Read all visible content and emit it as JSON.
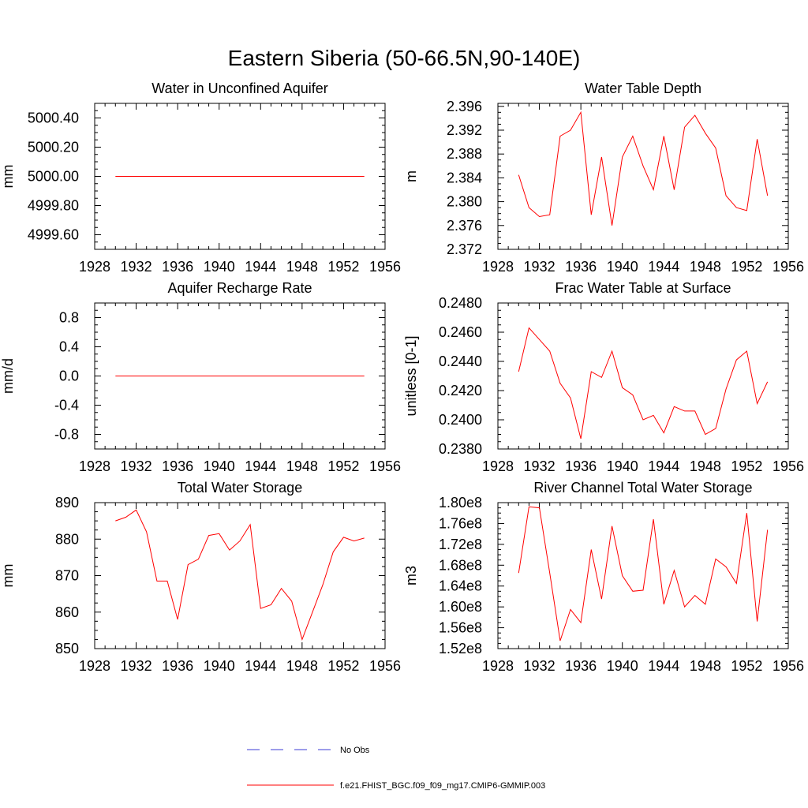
{
  "figure_title": "Eastern Siberia (50-66.5N,90-140E)",
  "colors": {
    "model": "#ff0000",
    "obs": "#3b3bd6",
    "axis": "#000000"
  },
  "legend": {
    "obs_label": "No Obs",
    "model_label": "f.e21.FHIST_BGC.f09_f09_mg17.CMIP6-GMMIP.003"
  },
  "chart_data": [
    {
      "type": "line",
      "title": "Water in Unconfined Aquifer",
      "ylabel": "mm",
      "xlim": [
        1928,
        1956
      ],
      "ylim": [
        4999.5,
        5000.5
      ],
      "xticks": [
        1928,
        1932,
        1936,
        1940,
        1944,
        1948,
        1952,
        1956
      ],
      "xtick_labels": [
        "1928",
        "1932",
        "1936",
        "1940",
        "1944",
        "1948",
        "1952",
        "1956"
      ],
      "yticks": [
        4999.6,
        4999.8,
        5000.0,
        5000.2,
        5000.4
      ],
      "ytick_labels": [
        "4999.60",
        "4999.80",
        "5000.00",
        "5000.20",
        "5000.40"
      ],
      "x": [
        1930,
        1931,
        1932,
        1933,
        1934,
        1935,
        1936,
        1937,
        1938,
        1939,
        1940,
        1941,
        1942,
        1943,
        1944,
        1945,
        1946,
        1947,
        1948,
        1949,
        1950,
        1951,
        1952,
        1953,
        1954
      ],
      "series": [
        {
          "name": "f.e21.FHIST_BGC.f09_f09_mg17.CMIP6-GMMIP.003",
          "values": [
            5000,
            5000,
            5000,
            5000,
            5000,
            5000,
            5000,
            5000,
            5000,
            5000,
            5000,
            5000,
            5000,
            5000,
            5000,
            5000,
            5000,
            5000,
            5000,
            5000,
            5000,
            5000,
            5000,
            5000,
            5000
          ]
        }
      ]
    },
    {
      "type": "line",
      "title": "Water Table Depth",
      "ylabel": "m",
      "xlim": [
        1928,
        1956
      ],
      "ylim": [
        2.372,
        2.3965
      ],
      "xticks": [
        1928,
        1932,
        1936,
        1940,
        1944,
        1948,
        1952,
        1956
      ],
      "xtick_labels": [
        "1928",
        "1932",
        "1936",
        "1940",
        "1944",
        "1948",
        "1952",
        "1956"
      ],
      "yticks": [
        2.372,
        2.376,
        2.38,
        2.384,
        2.388,
        2.392,
        2.396
      ],
      "ytick_labels": [
        "2.372",
        "2.376",
        "2.380",
        "2.384",
        "2.388",
        "2.392",
        "2.396"
      ],
      "x": [
        1930,
        1931,
        1932,
        1933,
        1934,
        1935,
        1936,
        1937,
        1938,
        1939,
        1940,
        1941,
        1942,
        1943,
        1944,
        1945,
        1946,
        1947,
        1948,
        1949,
        1950,
        1951,
        1952,
        1953,
        1954
      ],
      "series": [
        {
          "name": "f.e21.FHIST_BGC.f09_f09_mg17.CMIP6-GMMIP.003",
          "values": [
            2.3845,
            2.379,
            2.3775,
            2.3778,
            2.391,
            2.392,
            2.395,
            2.3778,
            2.3875,
            2.376,
            2.3875,
            2.391,
            2.386,
            2.382,
            2.391,
            2.382,
            2.3925,
            2.3945,
            2.3915,
            2.389,
            2.381,
            2.379,
            2.3785,
            2.3905,
            2.381
          ]
        }
      ]
    },
    {
      "type": "line",
      "title": "Aquifer Recharge Rate",
      "ylabel": "mm/d",
      "xlim": [
        1928,
        1956
      ],
      "ylim": [
        -1.0,
        1.0
      ],
      "xticks": [
        1928,
        1932,
        1936,
        1940,
        1944,
        1948,
        1952,
        1956
      ],
      "xtick_labels": [
        "1928",
        "1932",
        "1936",
        "1940",
        "1944",
        "1948",
        "1952",
        "1956"
      ],
      "yticks": [
        -0.8,
        -0.4,
        0.0,
        0.4,
        0.8
      ],
      "ytick_labels": [
        "-0.8",
        "-0.4",
        "0.0",
        "0.4",
        "0.8"
      ],
      "x": [
        1930,
        1931,
        1932,
        1933,
        1934,
        1935,
        1936,
        1937,
        1938,
        1939,
        1940,
        1941,
        1942,
        1943,
        1944,
        1945,
        1946,
        1947,
        1948,
        1949,
        1950,
        1951,
        1952,
        1953,
        1954
      ],
      "series": [
        {
          "name": "f.e21.FHIST_BGC.f09_f09_mg17.CMIP6-GMMIP.003",
          "values": [
            0,
            0,
            0,
            0,
            0,
            0,
            0,
            0,
            0,
            0,
            0,
            0,
            0,
            0,
            0,
            0,
            0,
            0,
            0,
            0,
            0,
            0,
            0,
            0,
            0
          ]
        }
      ]
    },
    {
      "type": "line",
      "title": "Frac Water Table at Surface",
      "ylabel": "unitless [0-1]",
      "xlim": [
        1928,
        1956
      ],
      "ylim": [
        0.238,
        0.248
      ],
      "xticks": [
        1928,
        1932,
        1936,
        1940,
        1944,
        1948,
        1952,
        1956
      ],
      "xtick_labels": [
        "1928",
        "1932",
        "1936",
        "1940",
        "1944",
        "1948",
        "1952",
        "1956"
      ],
      "yticks": [
        0.238,
        0.24,
        0.242,
        0.244,
        0.246,
        0.248
      ],
      "ytick_labels": [
        "0.2380",
        "0.2400",
        "0.2420",
        "0.2440",
        "0.2460",
        "0.2480"
      ],
      "x": [
        1930,
        1931,
        1932,
        1933,
        1934,
        1935,
        1936,
        1937,
        1938,
        1939,
        1940,
        1941,
        1942,
        1943,
        1944,
        1945,
        1946,
        1947,
        1948,
        1949,
        1950,
        1951,
        1952,
        1953,
        1954
      ],
      "series": [
        {
          "name": "f.e21.FHIST_BGC.f09_f09_mg17.CMIP6-GMMIP.003",
          "values": [
            0.2433,
            0.2463,
            0.2455,
            0.2447,
            0.2425,
            0.2415,
            0.2387,
            0.2433,
            0.2429,
            0.2447,
            0.2422,
            0.2417,
            0.24,
            0.2403,
            0.2391,
            0.2409,
            0.2406,
            0.2406,
            0.239,
            0.2394,
            0.2421,
            0.2441,
            0.2447,
            0.2411,
            0.2426
          ]
        }
      ]
    },
    {
      "type": "line",
      "title": "Total Water Storage",
      "ylabel": "mm",
      "xlim": [
        1928,
        1956
      ],
      "ylim": [
        850,
        890
      ],
      "xticks": [
        1928,
        1932,
        1936,
        1940,
        1944,
        1948,
        1952,
        1956
      ],
      "xtick_labels": [
        "1928",
        "1932",
        "1936",
        "1940",
        "1944",
        "1948",
        "1952",
        "1956"
      ],
      "yticks": [
        850,
        860,
        870,
        880,
        890
      ],
      "ytick_labels": [
        "850",
        "860",
        "870",
        "880",
        "890"
      ],
      "x": [
        1930,
        1931,
        1932,
        1933,
        1934,
        1935,
        1936,
        1937,
        1938,
        1939,
        1940,
        1941,
        1942,
        1943,
        1944,
        1945,
        1946,
        1947,
        1948,
        1949,
        1950,
        1951,
        1952,
        1953,
        1954
      ],
      "series": [
        {
          "name": "f.e21.FHIST_BGC.f09_f09_mg17.CMIP6-GMMIP.003",
          "values": [
            885,
            886,
            888,
            882,
            868.5,
            868.5,
            858,
            873,
            874.5,
            881,
            881.5,
            877,
            879.5,
            884,
            861,
            862,
            866.5,
            863,
            852.5,
            860,
            867.5,
            876.5,
            880.5,
            879.5,
            880.3
          ]
        }
      ]
    },
    {
      "type": "line",
      "title": "River Channel Total Water Storage",
      "ylabel": "m3",
      "xlim": [
        1928,
        1956
      ],
      "ylim": [
        152000000,
        180000000
      ],
      "xticks": [
        1928,
        1932,
        1936,
        1940,
        1944,
        1948,
        1952,
        1956
      ],
      "xtick_labels": [
        "1928",
        "1932",
        "1936",
        "1940",
        "1944",
        "1948",
        "1952",
        "1956"
      ],
      "yticks": [
        152000000,
        156000000,
        160000000,
        164000000,
        168000000,
        172000000,
        176000000,
        180000000
      ],
      "ytick_labels": [
        "1.52e8",
        "1.56e8",
        "1.60e8",
        "1.64e8",
        "1.68e8",
        "1.72e8",
        "1.76e8",
        "1.80e8"
      ],
      "x": [
        1930,
        1931,
        1932,
        1933,
        1934,
        1935,
        1936,
        1937,
        1938,
        1939,
        1940,
        1941,
        1942,
        1943,
        1944,
        1945,
        1946,
        1947,
        1948,
        1949,
        1950,
        1951,
        1952,
        1953,
        1954
      ],
      "series": [
        {
          "name": "f.e21.FHIST_BGC.f09_f09_mg17.CMIP6-GMMIP.003",
          "values": [
            166500000,
            179200000,
            179000000,
            166500000,
            153500000,
            159500000,
            157000000,
            171000000,
            161500000,
            175500000,
            166000000,
            163000000,
            163200000,
            176800000,
            160500000,
            167000000,
            160000000,
            162200000,
            160500000,
            169200000,
            167700000,
            164500000,
            178000000,
            157200000,
            174800000
          ]
        }
      ]
    }
  ]
}
